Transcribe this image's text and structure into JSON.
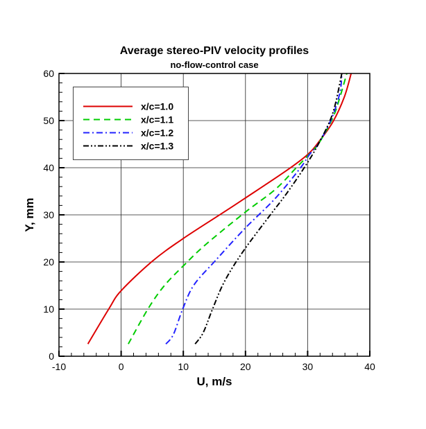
{
  "chart_data": {
    "type": "line",
    "title": "Average stereo-PIV velocity profiles",
    "subtitle": "no-flow-control case",
    "xlabel": "U, m/s",
    "ylabel": "Y, mm",
    "xlim": [
      -10,
      40
    ],
    "ylim": [
      0,
      60
    ],
    "xticks": [
      -10,
      0,
      10,
      20,
      30,
      40
    ],
    "yticks": [
      0,
      10,
      20,
      30,
      40,
      50,
      60
    ],
    "grid": true,
    "legend_position": "top-left",
    "series": [
      {
        "name": "x/c=1.0",
        "color": "#dd0000",
        "style": "solid",
        "x": [
          -5.35,
          -2.0,
          0.0,
          5.05,
          9.9,
          16.2,
          19.9,
          26.6,
          30.0,
          31.8,
          34.05,
          35.9,
          37.0
        ],
        "y": [
          2.6,
          10,
          13.9,
          20.2,
          24.9,
          30.3,
          33.5,
          39.4,
          42.8,
          45.5,
          49.7,
          55,
          60
        ]
      },
      {
        "name": "x/c=1.1",
        "color": "#00cc00",
        "style": "dashed",
        "x": [
          1.15,
          4.3,
          6.9,
          10.1,
          13.6,
          19.9,
          24.8,
          28.1,
          30.0,
          31.8,
          34.05,
          35.2,
          36.3
        ],
        "y": [
          2.6,
          10,
          14.9,
          19.3,
          23.7,
          30.5,
          35.4,
          39.9,
          42.5,
          45.2,
          50.6,
          55,
          60
        ]
      },
      {
        "name": "x/c=1.2",
        "color": "#2222ff",
        "style": "dash-dot",
        "x": [
          7.2,
          8.4,
          9.9,
          11.7,
          15.1,
          19.9,
          24.8,
          28.8,
          30.3,
          31.8,
          33.9,
          35.2,
          35.5
        ],
        "y": [
          2.6,
          4.6,
          10,
          15.1,
          20.2,
          27.1,
          33.5,
          39.9,
          42.8,
          45.2,
          50.6,
          56,
          60
        ]
      },
      {
        "name": "x/c=1.3",
        "color": "#000000",
        "style": "dash-dot-dot",
        "x": [
          11.9,
          13.2,
          14.7,
          16.6,
          19.6,
          24.0,
          26.6,
          29.6,
          31.8,
          34.05,
          35.5
        ],
        "y": [
          2.6,
          5.0,
          10,
          15.8,
          22.2,
          30,
          34.5,
          40.3,
          45.2,
          51.6,
          60
        ]
      }
    ]
  }
}
